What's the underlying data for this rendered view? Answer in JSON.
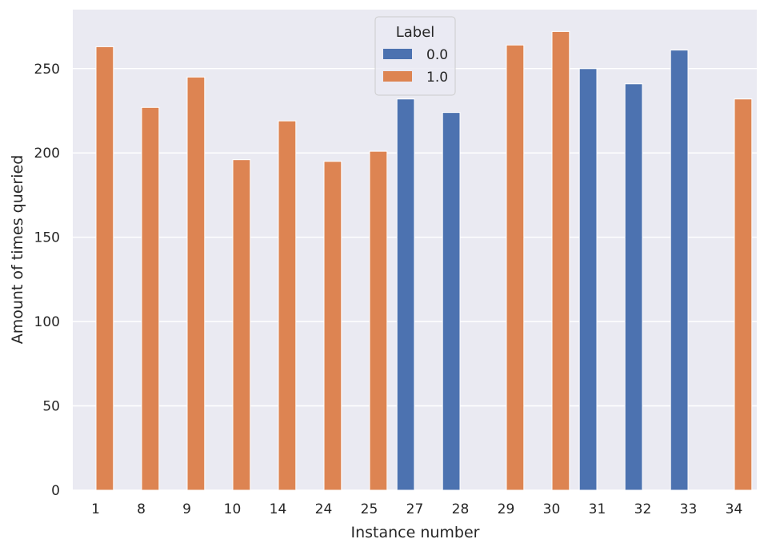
{
  "chart_data": {
    "type": "bar",
    "xlabel": "Instance number",
    "ylabel": "Amount of times queried",
    "categories": [
      "1",
      "8",
      "9",
      "10",
      "14",
      "24",
      "25",
      "27",
      "28",
      "29",
      "30",
      "31",
      "32",
      "33",
      "34"
    ],
    "series": [
      {
        "name": "0.0",
        "color": "#4c72b0",
        "values": [
          null,
          null,
          null,
          null,
          null,
          null,
          null,
          232,
          224,
          null,
          null,
          250,
          241,
          261,
          null
        ]
      },
      {
        "name": "1.0",
        "color": "#dd8452",
        "values": [
          263,
          227,
          245,
          196,
          219,
          195,
          201,
          null,
          null,
          264,
          272,
          null,
          null,
          null,
          232
        ]
      }
    ],
    "ylim": [
      0,
      285
    ],
    "yticks": [
      0,
      50,
      100,
      150,
      200,
      250
    ],
    "grid": true,
    "legend": {
      "title": "Label",
      "placement": "top-center"
    }
  }
}
